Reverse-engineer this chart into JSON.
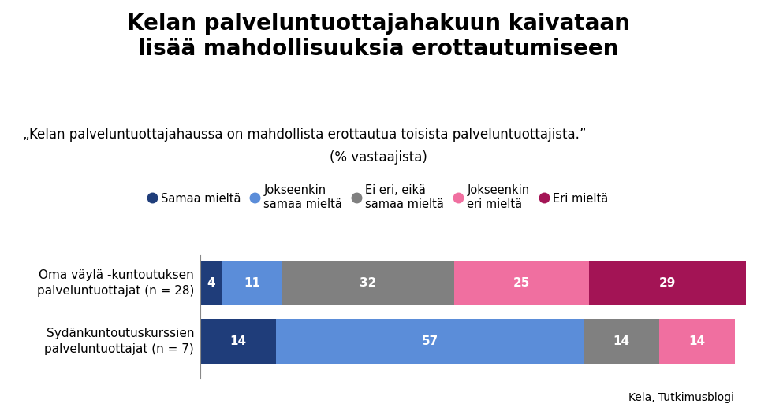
{
  "title": "Kelan palveluntuottajahakuun kaivataan\nlisää mahdollisuuksia erottautumiseen",
  "subtitle_line1": "„Kelan palveluntuottajahaussa on mahdollista erottautua toisista palveluntuottajista.”",
  "subtitle_line2": "(% vastaajista)",
  "categories": [
    "Oma väylä -kuntoutuksen\npalveluntuottajat (n = 28)",
    "Sydänkuntoutuskurssien\npalveluntuottajat (n = 7)"
  ],
  "series": [
    {
      "label": "Samaa mieltä",
      "color": "#1f3d7a",
      "values": [
        4,
        14
      ]
    },
    {
      "label": "Jokseenkin\nsamaa mieltä",
      "color": "#5b8dd9",
      "values": [
        11,
        57
      ]
    },
    {
      "label": "Ei eri, eikä\nsamaa mieltä",
      "color": "#808080",
      "values": [
        32,
        14
      ]
    },
    {
      "label": "Jokseenkin\neri mieltä",
      "color": "#f06fa0",
      "values": [
        25,
        14
      ]
    },
    {
      "label": "Eri mieltä",
      "color": "#a31455",
      "values": [
        29,
        0
      ]
    }
  ],
  "source": "Kela, Tutkimusblogi",
  "background_color": "#ffffff",
  "title_fontsize": 20,
  "subtitle_fontsize": 12,
  "label_fontsize": 11,
  "bar_label_fontsize": 11,
  "legend_fontsize": 10.5,
  "source_fontsize": 10
}
